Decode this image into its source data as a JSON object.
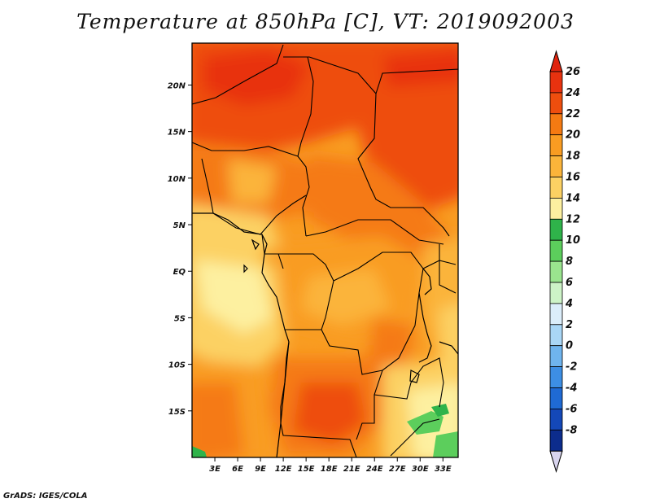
{
  "title": "Temperature at 850hPa [C], VT: 2019092003",
  "footer": "GrADS: IGES/COLA",
  "map": {
    "projection": "latlon",
    "lon_range": [
      0,
      35
    ],
    "lat_range": [
      -20,
      24.5
    ],
    "lat_ticks": [
      {
        "value": 20,
        "label": "20N"
      },
      {
        "value": 15,
        "label": "15N"
      },
      {
        "value": 10,
        "label": "10N"
      },
      {
        "value": 5,
        "label": "5N"
      },
      {
        "value": 0,
        "label": "EQ"
      },
      {
        "value": -5,
        "label": "5S"
      },
      {
        "value": -10,
        "label": "10S"
      },
      {
        "value": -15,
        "label": "15S"
      }
    ],
    "lon_ticks": [
      {
        "value": 3,
        "label": "3E"
      },
      {
        "value": 6,
        "label": "6E"
      },
      {
        "value": 9,
        "label": "9E"
      },
      {
        "value": 12,
        "label": "12E"
      },
      {
        "value": 15,
        "label": "15E"
      },
      {
        "value": 18,
        "label": "18E"
      },
      {
        "value": 21,
        "label": "21E"
      },
      {
        "value": 24,
        "label": "24E"
      },
      {
        "value": 27,
        "label": "27E"
      },
      {
        "value": 30,
        "label": "30E"
      },
      {
        "value": 33,
        "label": "33E"
      }
    ]
  },
  "colorbar": {
    "levels": [
      {
        "label": "26",
        "color": "#e8320f"
      },
      {
        "label": "24",
        "color": "#ee4e0e"
      },
      {
        "label": "22",
        "color": "#f57a12"
      },
      {
        "label": "20",
        "color": "#f99c22"
      },
      {
        "label": "18",
        "color": "#fbb43a"
      },
      {
        "label": "16",
        "color": "#fcd163"
      },
      {
        "label": "14",
        "color": "#fdf0a0"
      },
      {
        "label": "12",
        "color": "#2fb34a"
      },
      {
        "label": "10",
        "color": "#5cce5c"
      },
      {
        "label": "8",
        "color": "#9ae48e"
      },
      {
        "label": "6",
        "color": "#cdf3c7"
      },
      {
        "label": "4",
        "color": "#dbedfa"
      },
      {
        "label": "2",
        "color": "#a9d6f6"
      },
      {
        "label": "0",
        "color": "#6fb4ee"
      },
      {
        "label": "-2",
        "color": "#3d8ee4"
      },
      {
        "label": "-4",
        "color": "#1f6ad4"
      },
      {
        "label": "-6",
        "color": "#1448b8"
      },
      {
        "label": "-8",
        "color": "#0c2c8c"
      }
    ],
    "top_triangle_color": "#e0240e",
    "bottom_triangle_color": "#d8d4ee"
  }
}
